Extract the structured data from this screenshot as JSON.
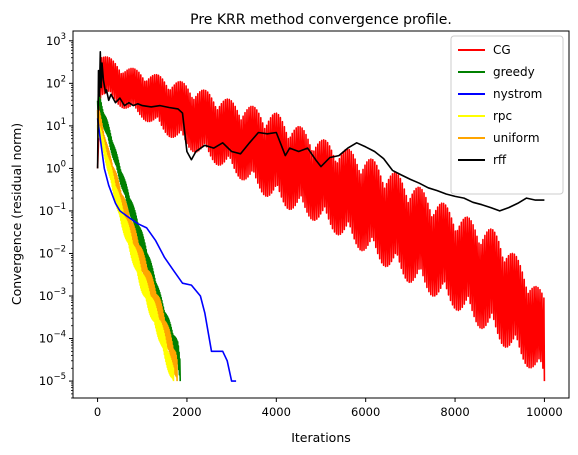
{
  "chart_data": {
    "type": "line",
    "title": "Pre KRR method convergence profile.",
    "xlabel": "Iterations",
    "ylabel": "Convergence (residual norm)",
    "xlim": [
      -550,
      10550
    ],
    "ylim": [
      4e-06,
      1700
    ],
    "yscale": "log",
    "grid": false,
    "legend_position": "top-right",
    "x_ticks": [
      0,
      2000,
      4000,
      6000,
      8000,
      10000
    ],
    "y_ticks": [
      {
        "value": 1e-05,
        "base": "10",
        "exp": "−5"
      },
      {
        "value": 0.0001,
        "base": "10",
        "exp": "−4"
      },
      {
        "value": 0.001,
        "base": "10",
        "exp": "−3"
      },
      {
        "value": 0.01,
        "base": "10",
        "exp": "−2"
      },
      {
        "value": 0.1,
        "base": "10",
        "exp": "−1"
      },
      {
        "value": 1,
        "base": "10",
        "exp": "0"
      },
      {
        "value": 10,
        "base": "10",
        "exp": "1"
      },
      {
        "value": 100,
        "base": "10",
        "exp": "2"
      },
      {
        "value": 1000,
        "base": "10",
        "exp": "3"
      }
    ],
    "series": [
      {
        "name": "CG",
        "color": "#ff0000",
        "noisy": true,
        "x": [
          0,
          50,
          100,
          300,
          600,
          1000,
          2000,
          3000,
          4000,
          5000,
          6000,
          7000,
          8000,
          9000,
          10000
        ],
        "upper": [
          1,
          600,
          500,
          380,
          250,
          200,
          100,
          40,
          20,
          5,
          2,
          0.5,
          0.1,
          0.03,
          0.001
        ],
        "lower": [
          1,
          40,
          50,
          40,
          25,
          15,
          3,
          0.8,
          0.15,
          0.05,
          0.01,
          0.002,
          0.0005,
          8e-05,
          1e-05
        ]
      },
      {
        "name": "greedy",
        "color": "#008000",
        "noisy": true,
        "x": [
          0,
          30,
          100,
          200,
          500,
          1000,
          1500,
          1800,
          1850
        ],
        "upper": [
          40,
          60,
          30,
          15,
          1.2,
          0.03,
          0.0005,
          8e-05,
          3e-05
        ],
        "lower": [
          20,
          30,
          12,
          6,
          0.5,
          0.01,
          0.0002,
          2e-05,
          1e-05
        ]
      },
      {
        "name": "nystrom",
        "color": "#0000ff",
        "noisy": false,
        "x": [
          0,
          50,
          150,
          250,
          400,
          500,
          700,
          900,
          1100,
          1300,
          1500,
          1700,
          1900,
          2100,
          2300,
          2400,
          2550,
          2650,
          2800,
          2900,
          3000,
          3100
        ],
        "y": [
          15,
          6,
          1.0,
          0.4,
          0.15,
          0.1,
          0.07,
          0.05,
          0.04,
          0.02,
          0.008,
          0.004,
          0.002,
          0.0018,
          0.001,
          0.0004,
          5e-05,
          5e-05,
          5e-05,
          3e-05,
          1e-05,
          1e-05
        ]
      },
      {
        "name": "rpc",
        "color": "#ffff00",
        "noisy": true,
        "x": [
          0,
          50,
          200,
          500,
          1000,
          1400,
          1650,
          1700
        ],
        "upper": [
          12,
          10,
          2.5,
          0.2,
          0.004,
          0.0003,
          3e-05,
          2e-05
        ],
        "lower": [
          6,
          5,
          1.2,
          0.06,
          0.0012,
          8e-05,
          1e-05,
          1e-05
        ]
      },
      {
        "name": "uniform",
        "color": "#ffa500",
        "noisy": true,
        "x": [
          0,
          50,
          200,
          500,
          1000,
          1400,
          1750,
          1780
        ],
        "upper": [
          25,
          20,
          4,
          0.4,
          0.012,
          0.0008,
          5e-05,
          3e-05
        ],
        "lower": [
          10,
          8,
          1.5,
          0.12,
          0.003,
          0.0002,
          1.2e-05,
          1e-05
        ]
      },
      {
        "name": "rff",
        "color": "#000000",
        "noisy": false,
        "x": [
          0,
          20,
          40,
          60,
          80,
          100,
          130,
          150,
          180,
          200,
          250,
          300,
          400,
          500,
          600,
          700,
          800,
          900,
          1000,
          1200,
          1400,
          1600,
          1800,
          1900,
          2000,
          2100,
          2200,
          2400,
          2600,
          2800,
          3000,
          3200,
          3400,
          3600,
          3800,
          4000,
          4200,
          4300,
          4500,
          4700,
          4900,
          5000,
          5200,
          5400,
          5600,
          5800,
          6000,
          6200,
          6400,
          6600,
          6800,
          7000,
          7200,
          7400,
          7600,
          7800,
          8000,
          8200,
          8400,
          8600,
          8800,
          9000,
          9200,
          9400,
          9600,
          9800,
          10000
        ],
        "y": [
          1,
          200,
          50,
          550,
          80,
          300,
          120,
          90,
          60,
          70,
          40,
          55,
          35,
          45,
          30,
          35,
          30,
          33,
          30,
          28,
          30,
          27,
          25,
          20,
          2.5,
          1.6,
          2.5,
          3.5,
          3,
          4,
          2.5,
          2.2,
          4,
          7,
          6.5,
          7,
          2,
          3,
          2.5,
          3,
          1.5,
          1.1,
          1.8,
          2,
          3,
          4,
          3.2,
          2.5,
          1.7,
          0.9,
          0.7,
          0.55,
          0.45,
          0.35,
          0.3,
          0.25,
          0.22,
          0.2,
          0.16,
          0.14,
          0.12,
          0.1,
          0.12,
          0.15,
          0.2,
          0.18,
          0.18
        ]
      }
    ]
  }
}
